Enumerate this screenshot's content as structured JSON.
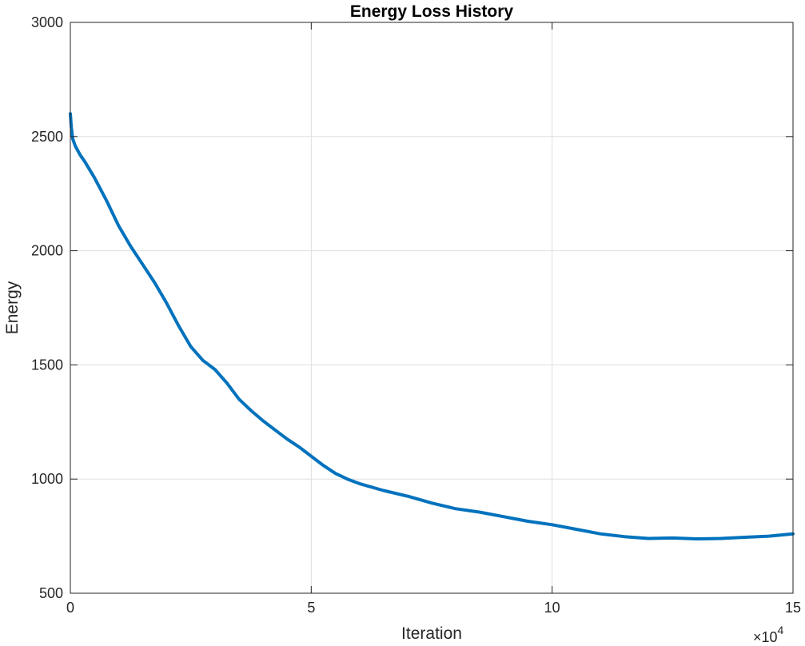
{
  "chart_data": {
    "type": "line",
    "title": "Energy Loss History",
    "xlabel": "Iteration",
    "ylabel": "Energy",
    "x_exponent_label": "×10",
    "x_exponent_power": "4",
    "xlim": [
      0,
      150000
    ],
    "ylim": [
      500,
      3000
    ],
    "xticks": [
      0,
      50000,
      100000,
      150000
    ],
    "xtick_labels": [
      "0",
      "5",
      "10",
      "15"
    ],
    "yticks": [
      500,
      1000,
      1500,
      2000,
      2500,
      3000
    ],
    "ytick_labels": [
      "500",
      "1000",
      "1500",
      "2000",
      "2500",
      "3000"
    ],
    "grid": true,
    "series": [
      {
        "color": "#0072bd",
        "x": [
          0,
          200,
          500,
          1000,
          2000,
          3000,
          5000,
          7500,
          10000,
          12500,
          15000,
          17500,
          20000,
          22500,
          25000,
          27500,
          30000,
          32500,
          35000,
          37500,
          40000,
          42500,
          45000,
          47500,
          50000,
          52500,
          55000,
          57500,
          60000,
          65000,
          70000,
          75000,
          80000,
          85000,
          90000,
          95000,
          100000,
          105000,
          110000,
          115000,
          120000,
          125000,
          130000,
          135000,
          140000,
          145000,
          150000
        ],
        "y": [
          2600,
          2540,
          2490,
          2460,
          2420,
          2390,
          2320,
          2220,
          2110,
          2020,
          1940,
          1860,
          1770,
          1670,
          1580,
          1520,
          1480,
          1420,
          1350,
          1300,
          1255,
          1215,
          1175,
          1140,
          1100,
          1060,
          1025,
          1000,
          980,
          950,
          925,
          895,
          870,
          855,
          835,
          815,
          800,
          780,
          760,
          748,
          740,
          742,
          738,
          740,
          745,
          750,
          760
        ]
      }
    ]
  }
}
